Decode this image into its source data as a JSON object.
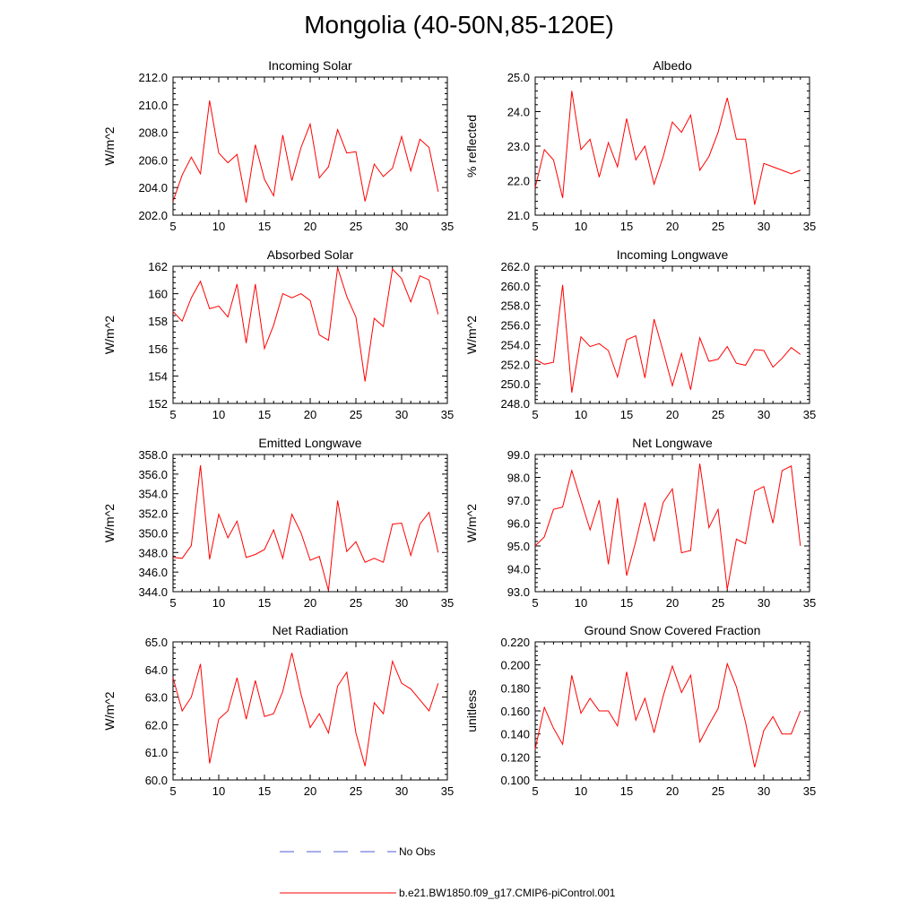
{
  "title": "Mongolia (40-50N,85-120E)",
  "colors": {
    "model": "#ff0000",
    "obs": "#4f5bd5",
    "axis": "#000000"
  },
  "legend": [
    {
      "label": "No Obs",
      "style": "dashed",
      "color": "#4f5bd5"
    },
    {
      "label": "b.e21.BW1850.f09_g17.CMIP6-piControl.001",
      "style": "solid",
      "color": "#ff0000"
    }
  ],
  "chart_data": [
    {
      "type": "line",
      "title": "Incoming Solar",
      "xlabel": "",
      "ylabel": "W/m^2",
      "xlim": [
        5,
        35
      ],
      "ylim": [
        202,
        212
      ],
      "xticks": [
        5,
        10,
        15,
        20,
        25,
        30,
        35
      ],
      "yticks": [
        202,
        204,
        206,
        208,
        210,
        212
      ],
      "ydecimals": 1,
      "x": [
        5,
        6,
        7,
        8,
        9,
        10,
        11,
        12,
        13,
        14,
        15,
        16,
        17,
        18,
        19,
        20,
        21,
        22,
        23,
        24,
        25,
        26,
        27,
        28,
        29,
        30,
        31,
        32,
        33,
        34
      ],
      "series": [
        {
          "name": "b.e21.BW1850.f09_g17.CMIP6-piControl.001",
          "values": [
            203.0,
            204.9,
            206.2,
            205.0,
            210.3,
            206.5,
            205.8,
            206.4,
            202.9,
            207.1,
            204.6,
            203.4,
            207.8,
            204.5,
            206.9,
            208.6,
            204.7,
            205.5,
            208.2,
            206.5,
            206.6,
            203.0,
            205.7,
            204.8,
            205.4,
            207.7,
            205.2,
            207.5,
            206.9,
            203.7
          ]
        }
      ]
    },
    {
      "type": "line",
      "title": "Albedo",
      "xlabel": "",
      "ylabel": "% reflected",
      "xlim": [
        5,
        35
      ],
      "ylim": [
        21,
        25
      ],
      "xticks": [
        5,
        10,
        15,
        20,
        25,
        30,
        35
      ],
      "yticks": [
        21,
        22,
        23,
        24,
        25
      ],
      "ydecimals": 1,
      "x": [
        5,
        6,
        7,
        8,
        9,
        10,
        11,
        12,
        13,
        14,
        15,
        16,
        17,
        18,
        19,
        20,
        21,
        22,
        23,
        24,
        25,
        26,
        27,
        28,
        29,
        30,
        31,
        32,
        33,
        34
      ],
      "series": [
        {
          "name": "b.e21.BW1850.f09_g17.CMIP6-piControl.001",
          "values": [
            21.8,
            22.9,
            22.6,
            21.5,
            24.6,
            22.9,
            23.2,
            22.1,
            23.1,
            22.4,
            23.8,
            22.6,
            23.0,
            21.9,
            22.7,
            23.7,
            23.4,
            23.9,
            22.3,
            22.7,
            23.4,
            24.4,
            23.2,
            23.2,
            21.3,
            22.5,
            22.4,
            22.3,
            22.2,
            22.3
          ]
        }
      ]
    },
    {
      "type": "line",
      "title": "Absorbed Solar",
      "xlabel": "",
      "ylabel": "W/m^2",
      "xlim": [
        5,
        35
      ],
      "ylim": [
        152,
        162
      ],
      "xticks": [
        5,
        10,
        15,
        20,
        25,
        30,
        35
      ],
      "yticks": [
        152,
        154,
        156,
        158,
        160,
        162
      ],
      "ydecimals": 0,
      "x": [
        5,
        6,
        7,
        8,
        9,
        10,
        11,
        12,
        13,
        14,
        15,
        16,
        17,
        18,
        19,
        20,
        21,
        22,
        23,
        24,
        25,
        26,
        27,
        28,
        29,
        30,
        31,
        32,
        33,
        34
      ],
      "series": [
        {
          "name": "b.e21.BW1850.f09_g17.CMIP6-piControl.001",
          "values": [
            158.7,
            158.0,
            159.7,
            160.9,
            158.9,
            159.1,
            158.3,
            160.7,
            156.4,
            160.7,
            156.0,
            157.7,
            160.0,
            159.7,
            160.0,
            159.5,
            157.0,
            156.6,
            161.9,
            159.8,
            158.3,
            153.6,
            158.2,
            157.6,
            161.8,
            161.1,
            159.4,
            161.3,
            161.0,
            158.5
          ]
        }
      ]
    },
    {
      "type": "line",
      "title": "Incoming Longwave",
      "xlabel": "",
      "ylabel": "W/m^2",
      "xlim": [
        5,
        35
      ],
      "ylim": [
        248,
        262
      ],
      "xticks": [
        5,
        10,
        15,
        20,
        25,
        30,
        35
      ],
      "yticks": [
        248,
        250,
        252,
        254,
        256,
        258,
        260,
        262
      ],
      "ydecimals": 1,
      "x": [
        5,
        6,
        7,
        8,
        9,
        10,
        11,
        12,
        13,
        14,
        15,
        16,
        17,
        18,
        19,
        20,
        21,
        22,
        23,
        24,
        25,
        26,
        27,
        28,
        29,
        30,
        31,
        32,
        33,
        34
      ],
      "series": [
        {
          "name": "b.e21.BW1850.f09_g17.CMIP6-piControl.001",
          "values": [
            252.5,
            252.0,
            252.2,
            260.1,
            249.1,
            254.8,
            253.8,
            254.1,
            253.4,
            250.7,
            254.5,
            254.9,
            250.6,
            256.6,
            253.3,
            249.8,
            253.1,
            249.4,
            254.7,
            252.3,
            252.5,
            253.8,
            252.1,
            251.9,
            253.5,
            253.4,
            251.7,
            252.6,
            253.7,
            253.0
          ]
        }
      ]
    },
    {
      "type": "line",
      "title": "Emitted Longwave",
      "xlabel": "",
      "ylabel": "W/m^2",
      "xlim": [
        5,
        35
      ],
      "ylim": [
        344,
        358
      ],
      "xticks": [
        5,
        10,
        15,
        20,
        25,
        30,
        35
      ],
      "yticks": [
        344,
        346,
        348,
        350,
        352,
        354,
        356,
        358
      ],
      "ydecimals": 1,
      "x": [
        5,
        6,
        7,
        8,
        9,
        10,
        11,
        12,
        13,
        14,
        15,
        16,
        17,
        18,
        19,
        20,
        21,
        22,
        23,
        24,
        25,
        26,
        27,
        28,
        29,
        30,
        31,
        32,
        33,
        34
      ],
      "series": [
        {
          "name": "b.e21.BW1850.f09_g17.CMIP6-piControl.001",
          "values": [
            347.5,
            347.4,
            348.7,
            356.9,
            347.3,
            351.9,
            349.5,
            351.2,
            347.5,
            347.8,
            348.3,
            350.3,
            347.4,
            351.9,
            350.0,
            347.2,
            347.6,
            344.1,
            353.3,
            348.1,
            349.1,
            347.0,
            347.4,
            347.0,
            350.9,
            351.0,
            347.7,
            350.9,
            352.1,
            348.0
          ]
        }
      ]
    },
    {
      "type": "line",
      "title": "Net Longwave",
      "xlabel": "",
      "ylabel": "W/m^2",
      "xlim": [
        5,
        35
      ],
      "ylim": [
        93,
        99
      ],
      "xticks": [
        5,
        10,
        15,
        20,
        25,
        30,
        35
      ],
      "yticks": [
        93,
        94,
        95,
        96,
        97,
        98,
        99
      ],
      "ydecimals": 1,
      "x": [
        5,
        6,
        7,
        8,
        9,
        10,
        11,
        12,
        13,
        14,
        15,
        16,
        17,
        18,
        19,
        20,
        21,
        22,
        23,
        24,
        25,
        26,
        27,
        28,
        29,
        30,
        31,
        32,
        33,
        34
      ],
      "series": [
        {
          "name": "b.e21.BW1850.f09_g17.CMIP6-piControl.001",
          "values": [
            95.0,
            95.4,
            96.6,
            96.7,
            98.3,
            97.0,
            95.7,
            97.0,
            94.2,
            97.1,
            93.7,
            95.2,
            96.9,
            95.2,
            96.9,
            97.5,
            94.7,
            94.8,
            98.6,
            95.8,
            96.6,
            93.1,
            95.3,
            95.1,
            97.4,
            97.6,
            96.0,
            98.3,
            98.5,
            95.0
          ]
        }
      ]
    },
    {
      "type": "line",
      "title": "Net Radiation",
      "xlabel": "",
      "ylabel": "W/m^2",
      "xlim": [
        5,
        35
      ],
      "ylim": [
        60,
        65
      ],
      "xticks": [
        5,
        10,
        15,
        20,
        25,
        30,
        35
      ],
      "yticks": [
        60,
        61,
        62,
        63,
        64,
        65
      ],
      "ydecimals": 1,
      "x": [
        5,
        6,
        7,
        8,
        9,
        10,
        11,
        12,
        13,
        14,
        15,
        16,
        17,
        18,
        19,
        20,
        21,
        22,
        23,
        24,
        25,
        26,
        27,
        28,
        29,
        30,
        31,
        32,
        33,
        34
      ],
      "series": [
        {
          "name": "b.e21.BW1850.f09_g17.CMIP6-piControl.001",
          "values": [
            63.7,
            62.5,
            63.0,
            64.2,
            60.6,
            62.2,
            62.5,
            63.7,
            62.2,
            63.6,
            62.3,
            62.4,
            63.2,
            64.6,
            63.1,
            61.9,
            62.4,
            61.7,
            63.4,
            63.9,
            61.7,
            60.5,
            62.8,
            62.4,
            64.3,
            63.5,
            63.3,
            62.9,
            62.5,
            63.5
          ]
        }
      ]
    },
    {
      "type": "line",
      "title": "Ground Snow Covered Fraction",
      "xlabel": "",
      "ylabel": "unitless",
      "xlim": [
        5,
        35
      ],
      "ylim": [
        0.1,
        0.22
      ],
      "xticks": [
        5,
        10,
        15,
        20,
        25,
        30,
        35
      ],
      "yticks": [
        0.1,
        0.12,
        0.14,
        0.16,
        0.18,
        0.2,
        0.22
      ],
      "ydecimals": 3,
      "x": [
        5,
        6,
        7,
        8,
        9,
        10,
        11,
        12,
        13,
        14,
        15,
        16,
        17,
        18,
        19,
        20,
        21,
        22,
        23,
        24,
        25,
        26,
        27,
        28,
        29,
        30,
        31,
        32,
        33,
        34
      ],
      "series": [
        {
          "name": "b.e21.BW1850.f09_g17.CMIP6-piControl.001",
          "values": [
            0.127,
            0.163,
            0.145,
            0.131,
            0.191,
            0.158,
            0.171,
            0.16,
            0.16,
            0.147,
            0.194,
            0.152,
            0.171,
            0.141,
            0.173,
            0.199,
            0.176,
            0.191,
            0.133,
            0.148,
            0.162,
            0.201,
            0.181,
            0.15,
            0.111,
            0.143,
            0.155,
            0.14,
            0.14,
            0.16
          ]
        }
      ]
    }
  ]
}
